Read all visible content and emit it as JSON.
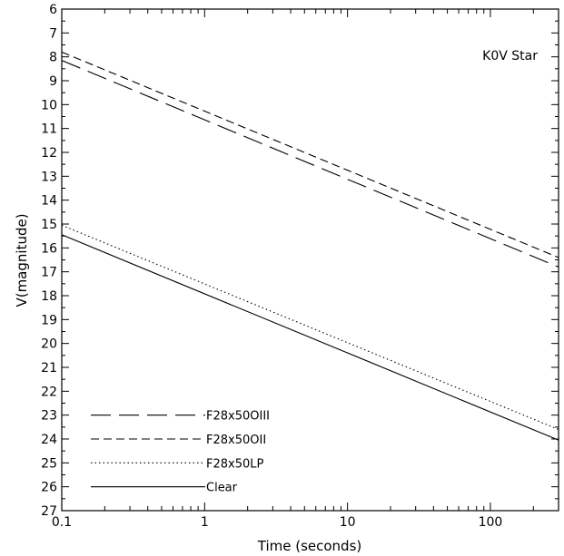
{
  "chart_data": {
    "type": "line",
    "title": "",
    "annotation": "K0V Star",
    "xlabel": "Time (seconds)",
    "ylabel": "V(magnitude)",
    "xscale": "log",
    "xlim": [
      0.1,
      300
    ],
    "ylim": [
      27,
      6
    ],
    "y_inverted": true,
    "grid": false,
    "legend_position": "bottom-left",
    "x_tick_labels": [
      "0.1",
      "1",
      "10",
      "100"
    ],
    "x_ticks": [
      0.1,
      1,
      10,
      100
    ],
    "y_ticks": [
      6,
      7,
      8,
      9,
      10,
      11,
      12,
      13,
      14,
      15,
      16,
      17,
      18,
      19,
      20,
      21,
      22,
      23,
      24,
      25,
      26,
      27
    ],
    "y_tick_labels": [
      "6",
      "7",
      "8",
      "9",
      "10",
      "11",
      "12",
      "13",
      "14",
      "15",
      "16",
      "17",
      "18",
      "19",
      "20",
      "21",
      "22",
      "23",
      "24",
      "25",
      "26",
      "27"
    ],
    "series": [
      {
        "name": "F28x50OIII",
        "style": "long-dash",
        "x": [
          0.1,
          300
        ],
        "y": [
          8.15,
          16.8
        ]
      },
      {
        "name": "F28x50OII",
        "style": "dash",
        "x": [
          0.1,
          300
        ],
        "y": [
          7.8,
          16.4
        ]
      },
      {
        "name": "F28x50LP",
        "style": "dotted",
        "x": [
          0.1,
          300
        ],
        "y": [
          15.05,
          23.6
        ]
      },
      {
        "name": "Clear",
        "style": "solid",
        "x": [
          0.1,
          300
        ],
        "y": [
          15.45,
          24.05
        ]
      }
    ]
  }
}
